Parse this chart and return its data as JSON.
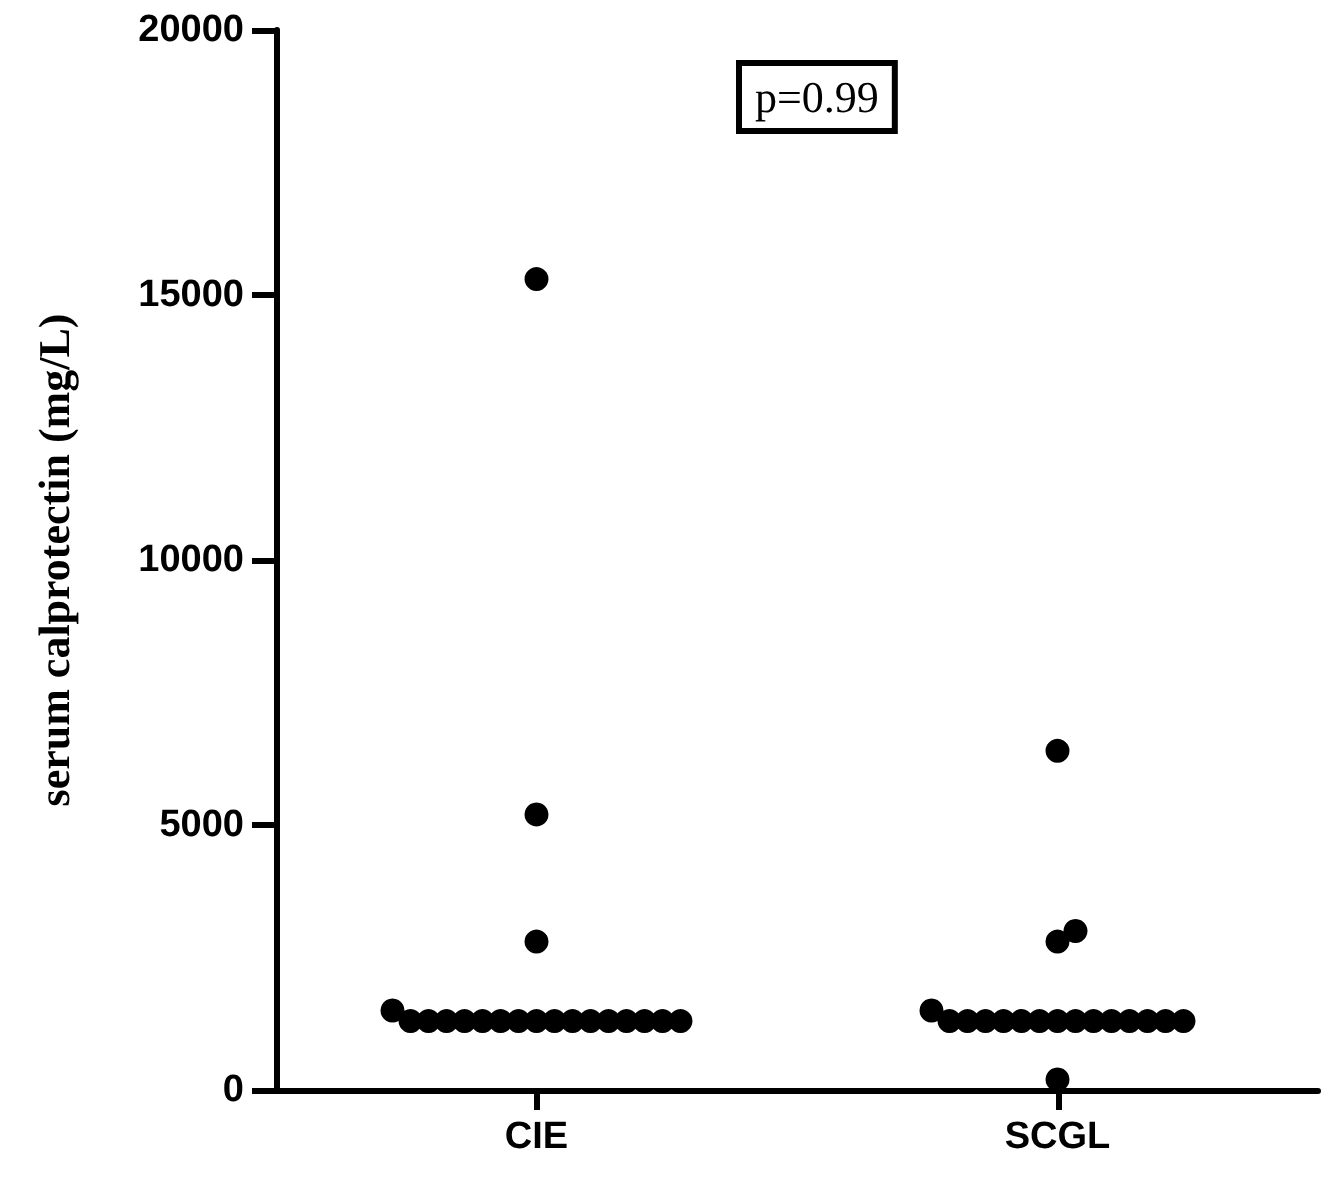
{
  "chart_data": {
    "type": "scatter",
    "categories": [
      "CIE",
      "SCGL"
    ],
    "ylabel": "serum calprotectin (mg/L)",
    "annotations": [
      "p=0.99"
    ],
    "ylim": [
      0,
      20000
    ],
    "yticks": [
      0,
      5000,
      10000,
      15000,
      20000
    ],
    "grid": false,
    "marker": "circle",
    "series": [
      {
        "color": "#000000",
        "x": [
          "CIE",
          "CIE",
          "CIE",
          "CIE",
          "CIE",
          "CIE",
          "CIE",
          "CIE",
          "CIE",
          "CIE",
          "CIE",
          "CIE",
          "CIE",
          "CIE",
          "CIE",
          "CIE",
          "CIE",
          "CIE",
          "CIE",
          "CIE"
        ],
        "values": [
          15300,
          5200,
          2800,
          1500,
          1300,
          1300,
          1300,
          1300,
          1300,
          1300,
          1300,
          1300,
          1300,
          1300,
          1300,
          1300,
          1300,
          1300,
          1300,
          1300
        ]
      },
      {
        "color": "#000000",
        "x": [
          "SCGL",
          "SCGL",
          "SCGL",
          "SCGL",
          "SCGL",
          "SCGL",
          "SCGL",
          "SCGL",
          "SCGL",
          "SCGL",
          "SCGL",
          "SCGL",
          "SCGL",
          "SCGL",
          "SCGL",
          "SCGL",
          "SCGL",
          "SCGL",
          "SCGL"
        ],
        "values": [
          6400,
          3000,
          2800,
          1500,
          1300,
          1300,
          1300,
          1300,
          1300,
          1300,
          1300,
          1300,
          1300,
          1300,
          1300,
          1300,
          1300,
          1300,
          200
        ]
      }
    ]
  }
}
